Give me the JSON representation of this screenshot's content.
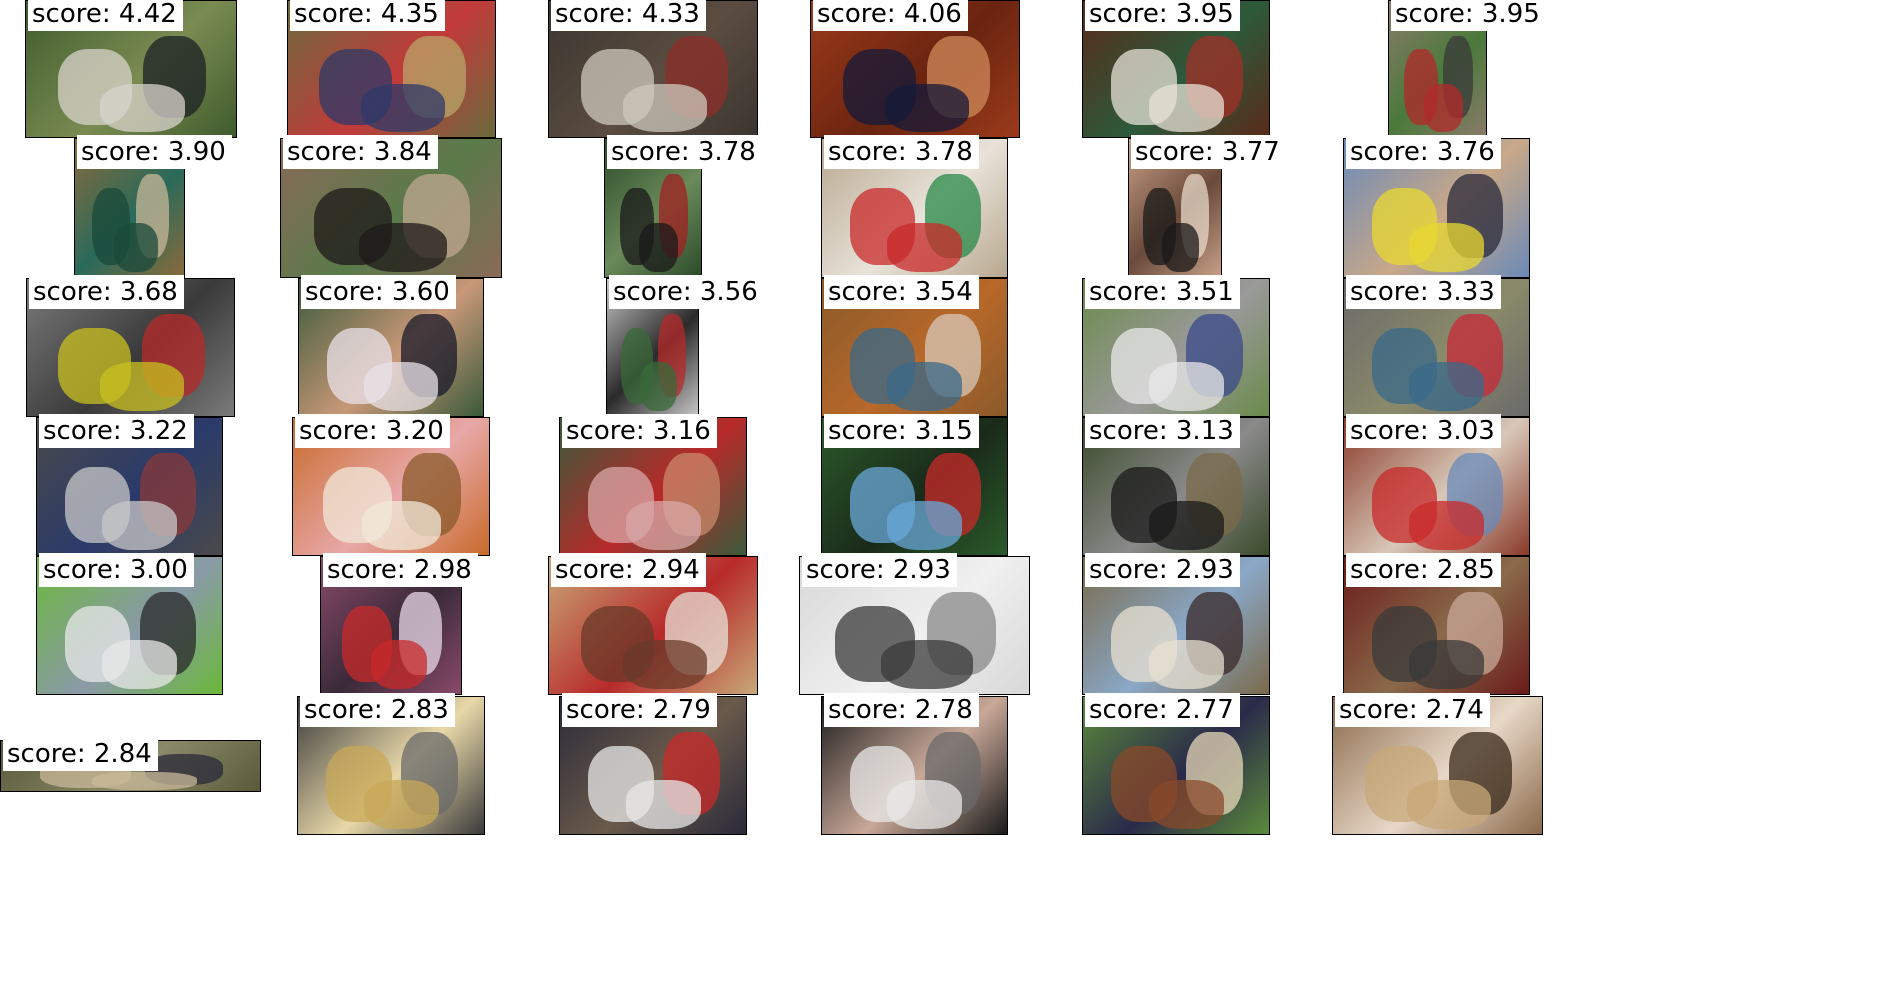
{
  "score_prefix": "score: ",
  "images": [
    {
      "score": "4.42",
      "colors": [
        "#3f5b2c",
        "#d8d4cc",
        "#1c2026",
        "#7a8b52"
      ]
    },
    {
      "score": "4.35",
      "colors": [
        "#6b6a3c",
        "#2d3a6a",
        "#b8a66a",
        "#c23a3a"
      ]
    },
    {
      "score": "4.33",
      "colors": [
        "#3b3530",
        "#cfc8bc",
        "#8c2f2a",
        "#5a4c40"
      ]
    },
    {
      "score": "4.06",
      "colors": [
        "#9b3a1a",
        "#141a3a",
        "#d08a5a",
        "#6a2410"
      ]
    },
    {
      "score": "3.95",
      "colors": [
        "#5a2a1a",
        "#e8e2d6",
        "#a23028",
        "#2c5a3a"
      ]
    },
    {
      "score": "3.95",
      "colors": [
        "#8a7a6a",
        "#b22a2a",
        "#3a3a3a",
        "#4a7a3a"
      ]
    },
    {
      "score": "3.90",
      "colors": [
        "#8a6a3a",
        "#1a4a3a",
        "#c8b89a",
        "#2a6a5a"
      ]
    },
    {
      "score": "3.84",
      "colors": [
        "#8a6a58",
        "#1e1a18",
        "#c0a890",
        "#5a7a4a"
      ]
    },
    {
      "score": "3.78",
      "colors": [
        "#2c4a2a",
        "#1a1a1a",
        "#a02020",
        "#6a8a5a"
      ]
    },
    {
      "score": "3.78",
      "colors": [
        "#b8a890",
        "#c82a2a",
        "#2a8a4a",
        "#e8e2d8"
      ]
    },
    {
      "score": "3.77",
      "colors": [
        "#c8a088",
        "#1a1a1a",
        "#e8d8c8",
        "#6a4a3a"
      ]
    },
    {
      "score": "3.76",
      "colors": [
        "#6a8ab8",
        "#e8d830",
        "#2a2a3a",
        "#c8a888"
      ]
    },
    {
      "score": "3.68",
      "colors": [
        "#7a7a7a",
        "#c8c020",
        "#b82a2a",
        "#3a3a3a"
      ]
    },
    {
      "score": "3.60",
      "colors": [
        "#3a5a3a",
        "#e8e2e8",
        "#1a1a2a",
        "#c89878"
      ]
    },
    {
      "score": "3.56",
      "colors": [
        "#c8c8c8",
        "#3a6a3a",
        "#b82a2a",
        "#2a2a2a"
      ]
    },
    {
      "score": "3.54",
      "colors": [
        "#8a5a2a",
        "#3a6a8a",
        "#d8c8b8",
        "#b8682a"
      ]
    },
    {
      "score": "3.51",
      "colors": [
        "#6a8a4a",
        "#e8e8e8",
        "#3a4a8a",
        "#9a9a9a"
      ]
    },
    {
      "score": "3.33",
      "colors": [
        "#6a6a6a",
        "#3a6a8a",
        "#c82a3a",
        "#8a8a6a"
      ]
    },
    {
      "score": "3.22",
      "colors": [
        "#4a4a4a",
        "#c8c8c8",
        "#8a3a3a",
        "#2a3a6a"
      ]
    },
    {
      "score": "3.20",
      "colors": [
        "#c86a2a",
        "#f0e8d8",
        "#8a5a2a",
        "#e8a8a8"
      ]
    },
    {
      "score": "3.16",
      "colors": [
        "#3a5a3a",
        "#d8a8a8",
        "#c88a6a",
        "#b82a2a"
      ]
    },
    {
      "score": "3.15",
      "colors": [
        "#2a5a2a",
        "#6aa8d8",
        "#c82a2a",
        "#1a2a1a"
      ]
    },
    {
      "score": "3.13",
      "colors": [
        "#3a4a2a",
        "#1a1a1a",
        "#7a6a4a",
        "#8a8a8a"
      ]
    },
    {
      "score": "3.03",
      "colors": [
        "#8a3a2a",
        "#c82a2a",
        "#6a8ab8",
        "#d8c8b8"
      ]
    },
    {
      "score": "3.00",
      "colors": [
        "#6ab83a",
        "#e8e8e8",
        "#2a2a2a",
        "#8a9aa8"
      ]
    },
    {
      "score": "2.98",
      "colors": [
        "#8a4a6a",
        "#c82a2a",
        "#e8d8e8",
        "#3a2a3a"
      ]
    },
    {
      "score": "2.94",
      "colors": [
        "#c8a878",
        "#6a3a2a",
        "#e8e2d8",
        "#b82a2a"
      ]
    },
    {
      "score": "2.93",
      "colors": [
        "#d8d8d8",
        "#3a3a3a",
        "#8a8a8a",
        "#f0f0f0"
      ]
    },
    {
      "score": "2.93",
      "colors": [
        "#7a6a4a",
        "#e8e0d0",
        "#3a2a2a",
        "#8aa8c8"
      ]
    },
    {
      "score": "2.85",
      "colors": [
        "#6a1a1a",
        "#3a3a3a",
        "#c8a898",
        "#8a6a4a"
      ]
    },
    {
      "score": "2.84",
      "colors": [
        "#5a5a3a",
        "#c8b898",
        "#2a2a3a",
        "#8a8a6a"
      ]
    },
    {
      "score": "2.83",
      "colors": [
        "#3a3a3a",
        "#c8a858",
        "#6a6a6a",
        "#e8d8a8"
      ]
    },
    {
      "score": "2.79",
      "colors": [
        "#2a2a3a",
        "#e8e8e8",
        "#c82a2a",
        "#6a5a4a"
      ]
    },
    {
      "score": "2.78",
      "colors": [
        "#1a1a1a",
        "#e8e8e8",
        "#6a6a6a",
        "#c8a898"
      ]
    },
    {
      "score": "2.77",
      "colors": [
        "#5a8a3a",
        "#8a4a2a",
        "#e8d8b8",
        "#2a2a4a"
      ]
    },
    {
      "score": "2.74",
      "colors": [
        "#8a6a4a",
        "#c8a878",
        "#3a2a1a",
        "#e8d8c8"
      ]
    }
  ]
}
